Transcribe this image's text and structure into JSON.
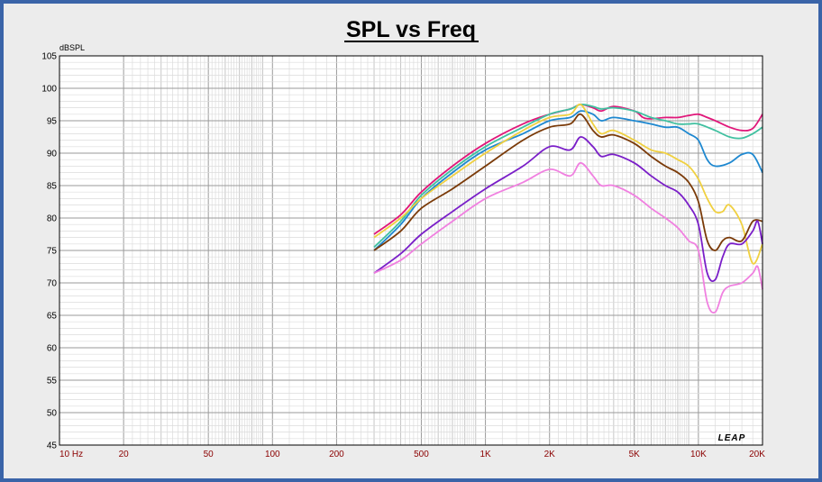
{
  "chart_data": {
    "type": "line",
    "title": "SPL vs Freq",
    "ylabel": "dBSPL",
    "xscale": "log",
    "xlim": [
      10,
      20000
    ],
    "ylim": [
      45,
      105
    ],
    "yticks": [
      105,
      100,
      95,
      90,
      85,
      80,
      75,
      70,
      65,
      60,
      55,
      50,
      45
    ],
    "xticks": [
      {
        "value": 10,
        "label": "10  Hz"
      },
      {
        "value": 20,
        "label": "20"
      },
      {
        "value": 50,
        "label": "50"
      },
      {
        "value": 100,
        "label": "100"
      },
      {
        "value": 200,
        "label": "200"
      },
      {
        "value": 500,
        "label": "500"
      },
      {
        "value": 1000,
        "label": "1K"
      },
      {
        "value": 2000,
        "label": "2K"
      },
      {
        "value": 5000,
        "label": "5K"
      },
      {
        "value": 10000,
        "label": "10K"
      },
      {
        "value": 20000,
        "label": "20K"
      }
    ],
    "grid": true,
    "logo": "LEAP",
    "series": [
      {
        "color": "#e0177a",
        "x": [
          300,
          400,
          500,
          700,
          1000,
          1500,
          2000,
          2500,
          2800,
          3200,
          3500,
          4000,
          5000,
          5500,
          6000,
          7000,
          8000,
          9000,
          10000,
          11000,
          12000,
          14000,
          16000,
          18000,
          20000
        ],
        "y": [
          77.5,
          80.5,
          84,
          88,
          91.5,
          94.5,
          96,
          96.8,
          97.5,
          97,
          96.5,
          97.2,
          96.5,
          95.5,
          95.3,
          95.5,
          95.5,
          95.8,
          96,
          95.5,
          95,
          94,
          93.5,
          93.8,
          96
        ]
      },
      {
        "color": "#40c0a0",
        "x": [
          300,
          400,
          500,
          700,
          1000,
          1500,
          2000,
          2500,
          2800,
          3200,
          3500,
          4000,
          5000,
          6000,
          7000,
          8000,
          9000,
          10000,
          12000,
          14000,
          16000,
          18000,
          20000
        ],
        "y": [
          75.5,
          79.5,
          83.5,
          87.5,
          91,
          94,
          96,
          96.8,
          97.5,
          97.2,
          96.8,
          97,
          96.5,
          95.5,
          95,
          94.5,
          94.5,
          94.5,
          93.5,
          92.5,
          92.3,
          93,
          94
        ]
      },
      {
        "color": "#1e88d0",
        "x": [
          300,
          400,
          500,
          700,
          1000,
          1500,
          2000,
          2500,
          2800,
          3200,
          3500,
          4000,
          5000,
          6000,
          7000,
          8000,
          9000,
          10000,
          11000,
          12000,
          14000,
          16000,
          18000,
          20000
        ],
        "y": [
          75,
          79,
          83,
          87,
          90.5,
          93,
          95,
          95.5,
          96.5,
          96,
          95,
          95.5,
          95,
          94.5,
          94,
          94,
          93,
          92,
          89,
          88,
          88.5,
          89.8,
          89.8,
          87
        ]
      },
      {
        "color": "#f0d040",
        "x": [
          300,
          400,
          500,
          700,
          1000,
          1500,
          2000,
          2500,
          2800,
          3200,
          3500,
          4000,
          5000,
          6000,
          7000,
          8000,
          9000,
          10000,
          11000,
          12000,
          13000,
          14000,
          16000,
          18000,
          20000
        ],
        "y": [
          77,
          80,
          83,
          86.5,
          90,
          93.5,
          95.5,
          96,
          97.5,
          94.5,
          93,
          93.5,
          92,
          90.5,
          90,
          89,
          88,
          86,
          83,
          81,
          81,
          82,
          79,
          73,
          76
        ]
      },
      {
        "color": "#7a3a08",
        "x": [
          300,
          400,
          500,
          700,
          1000,
          1500,
          2000,
          2500,
          2800,
          3200,
          3500,
          4000,
          5000,
          6000,
          7000,
          8000,
          9000,
          10000,
          11000,
          12000,
          13000,
          14000,
          16000,
          18000,
          20000
        ],
        "y": [
          75,
          78,
          81.5,
          84.5,
          88,
          92,
          94,
          94.5,
          96,
          93.5,
          92.5,
          92.8,
          91.5,
          89.5,
          88,
          87,
          85.5,
          82.5,
          76.5,
          75,
          76.5,
          77,
          76.5,
          79.5,
          79.5
        ]
      },
      {
        "color": "#7a1ec8",
        "x": [
          300,
          400,
          500,
          700,
          1000,
          1500,
          2000,
          2500,
          2800,
          3200,
          3500,
          4000,
          5000,
          6000,
          7000,
          8000,
          9000,
          10000,
          11000,
          12000,
          13000,
          14000,
          16000,
          18000,
          19000,
          20000
        ],
        "y": [
          71.5,
          74.5,
          77.5,
          81,
          84.5,
          88,
          91,
          90.5,
          92.5,
          91,
          89.5,
          89.8,
          88.5,
          86.5,
          85,
          84,
          82,
          79,
          71.5,
          70.5,
          74,
          76,
          76,
          78,
          79.5,
          76
        ]
      },
      {
        "color": "#f080e0",
        "x": [
          300,
          400,
          500,
          700,
          1000,
          1500,
          2000,
          2500,
          2800,
          3200,
          3500,
          4000,
          5000,
          6000,
          7000,
          8000,
          9000,
          10000,
          11000,
          12000,
          13000,
          14000,
          16000,
          18000,
          19000,
          20000
        ],
        "y": [
          71.5,
          73.5,
          76,
          79.5,
          83,
          85.5,
          87.5,
          86.5,
          88.5,
          86.5,
          85,
          85,
          83.5,
          81.5,
          80,
          78.5,
          76.5,
          75,
          67,
          65.5,
          68.5,
          69.5,
          70,
          71.5,
          72.5,
          69
        ]
      }
    ]
  }
}
